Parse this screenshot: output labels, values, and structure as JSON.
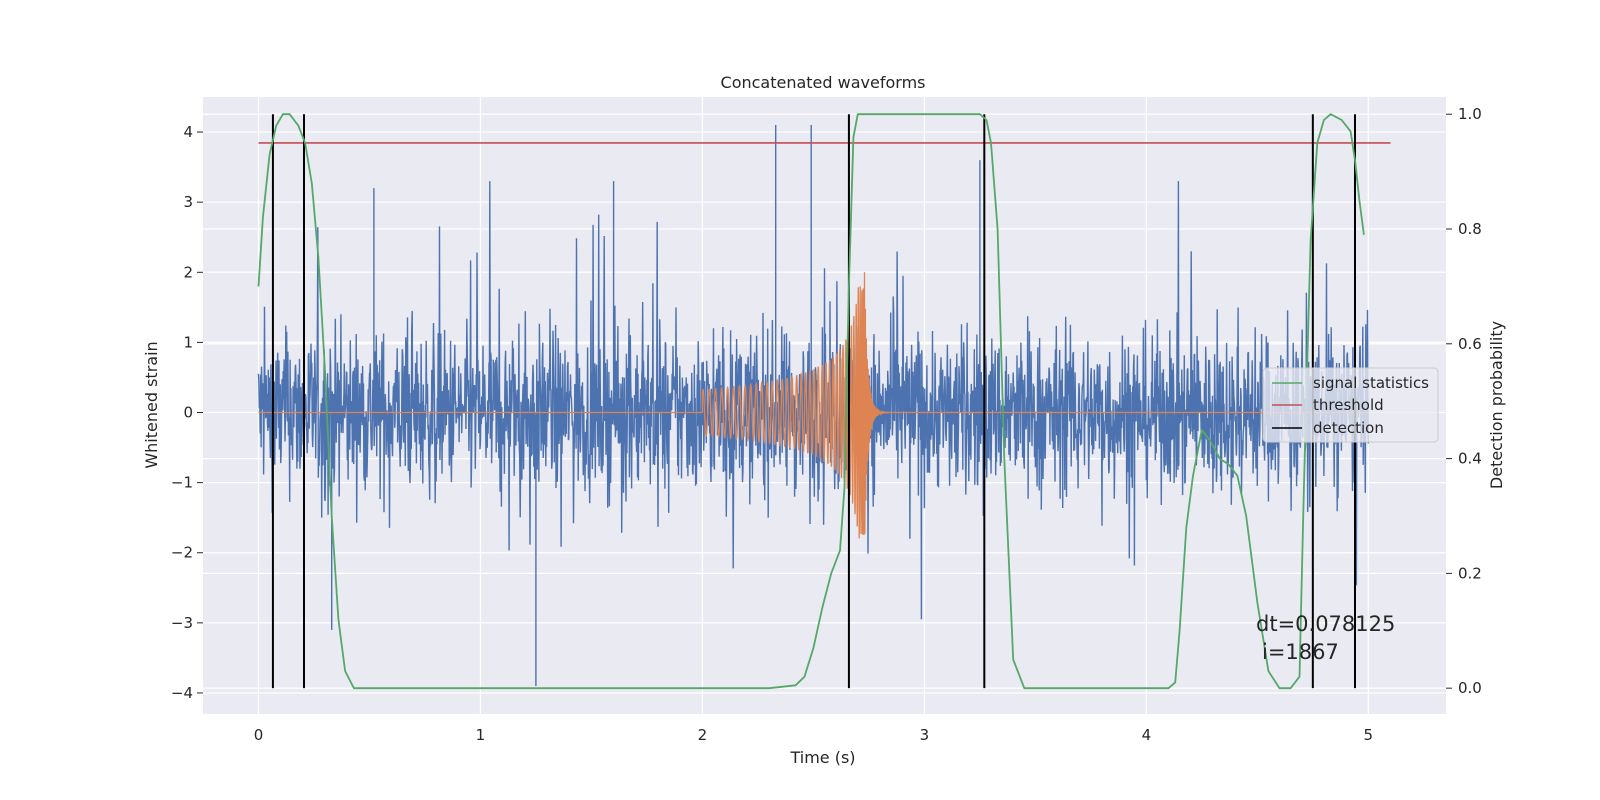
{
  "chart_data": {
    "type": "line",
    "title": "Concatenated waveforms",
    "xlabel": "Time (s)",
    "ylabel_left": "Whitened strain",
    "ylabel_right": "Detection probability",
    "xlim": [
      -0.25,
      5.35
    ],
    "ylim_left": [
      -4.3,
      4.5
    ],
    "ylim_right": [
      -0.045,
      1.03
    ],
    "x_ticks": [
      "0",
      "1",
      "2",
      "3",
      "4",
      "5"
    ],
    "y_ticks_left": [
      "−4",
      "−3",
      "−2",
      "−1",
      "0",
      "1",
      "2",
      "3",
      "4"
    ],
    "y_ticks_right": [
      "0.0",
      "0.2",
      "0.4",
      "0.6",
      "0.8",
      "1.0"
    ],
    "grid": true,
    "legend_position": "center-right",
    "series": [
      {
        "name": "",
        "axis": "left",
        "kind": "noise",
        "description_values": {
          "t_start": 0,
          "t_end": 5.0,
          "band_lower": -0.7,
          "band_upper": 0.9,
          "max_spike": 4.1,
          "min_spike": -3.9
        },
        "color": "#4c72b0"
      },
      {
        "name": "",
        "axis": "left",
        "kind": "chirp",
        "t_start": 2.0,
        "t_merger": 2.73,
        "t_end": 3.0,
        "peak": 1.7,
        "trough": -2.1,
        "color": "#dd8452"
      },
      {
        "name": "signal statistics",
        "axis": "right",
        "color": "#55a868",
        "x": [
          0.0,
          0.02,
          0.05,
          0.08,
          0.11,
          0.14,
          0.18,
          0.21,
          0.24,
          0.27,
          0.3,
          0.33,
          0.36,
          0.39,
          0.43,
          0.5,
          1.0,
          1.5,
          2.0,
          2.3,
          2.42,
          2.46,
          2.5,
          2.54,
          2.58,
          2.62,
          2.64,
          2.66,
          2.68,
          2.7,
          2.8,
          3.0,
          3.2,
          3.25,
          3.28,
          3.3,
          3.33,
          3.36,
          3.4,
          3.45,
          3.6,
          3.8,
          4.1,
          4.13,
          4.15,
          4.18,
          4.21,
          4.25,
          4.29,
          4.33,
          4.37,
          4.41,
          4.45,
          4.5,
          4.55,
          4.6,
          4.65,
          4.69,
          4.71,
          4.74,
          4.77,
          4.8,
          4.83,
          4.88,
          4.92,
          4.94,
          4.96,
          4.98
        ],
        "y": [
          0.7,
          0.82,
          0.93,
          0.98,
          1.0,
          1.0,
          0.98,
          0.95,
          0.88,
          0.75,
          0.55,
          0.3,
          0.12,
          0.03,
          0.0,
          0.0,
          0.0,
          0.0,
          0.0,
          0.0,
          0.005,
          0.02,
          0.07,
          0.14,
          0.2,
          0.24,
          0.35,
          0.7,
          0.96,
          1.0,
          1.0,
          1.0,
          1.0,
          1.0,
          0.99,
          0.95,
          0.8,
          0.4,
          0.05,
          0.0,
          0.0,
          0.0,
          0.0,
          0.01,
          0.1,
          0.28,
          0.37,
          0.45,
          0.43,
          0.4,
          0.39,
          0.37,
          0.3,
          0.15,
          0.03,
          0.0,
          0.0,
          0.02,
          0.35,
          0.78,
          0.95,
          0.99,
          1.0,
          0.99,
          0.97,
          0.92,
          0.85,
          0.79
        ]
      },
      {
        "name": "threshold",
        "axis": "right",
        "color": "#c44e52",
        "x": [
          0.0,
          5.1
        ],
        "y": [
          0.95,
          0.95
        ]
      },
      {
        "name": "detection",
        "axis": "right",
        "color": "#000000",
        "x": [
          0.065,
          0.205,
          2.66,
          3.27,
          4.75,
          4.94
        ],
        "y_range": [
          0.0,
          1.0
        ]
      }
    ],
    "annotations": [
      "dt=0.078125",
      "i=1867"
    ]
  }
}
